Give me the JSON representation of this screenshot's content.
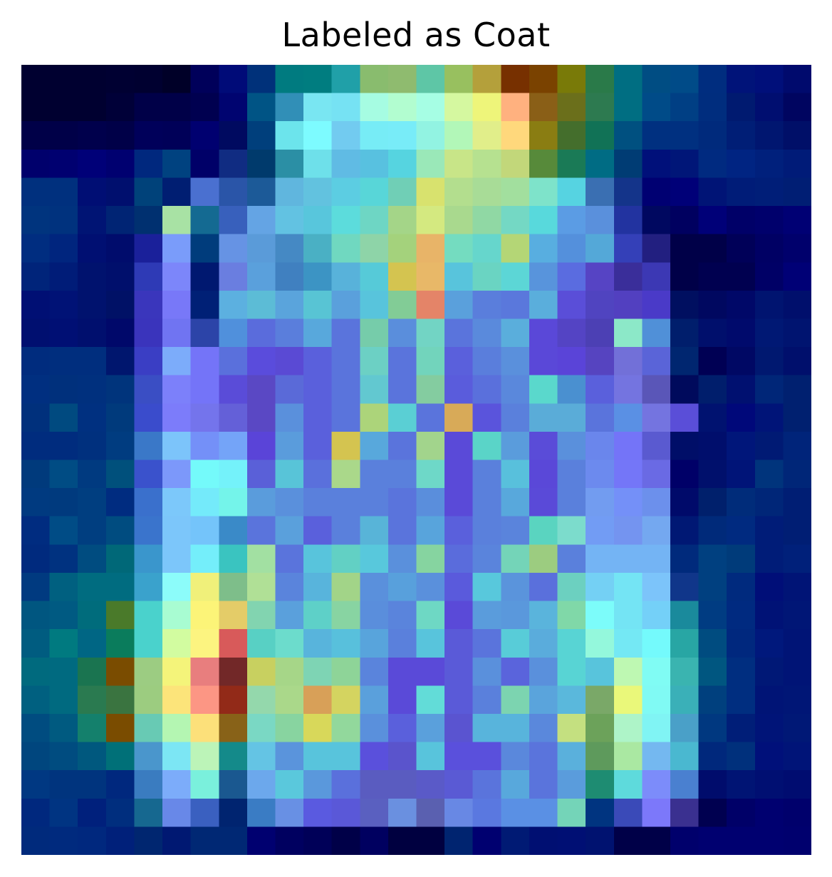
{
  "title": "Labeled as Coat",
  "image_description_tag": "heatmap-overlay",
  "colors": {
    "background": "#ffffff",
    "title_text": "#000000"
  },
  "grid": {
    "rows": 28,
    "cols": 28
  },
  "pixels": [
    [
      "#000030",
      "#000030",
      "#000030",
      "#000032",
      "#000030",
      "#000028",
      "#00005a",
      "#000b78",
      "#00317a",
      "#007b80",
      "#007d80",
      "#20a0a8",
      "#89bc6e",
      "#8fbb6f",
      "#5ec6a6",
      "#98c05f",
      "#b4a03b",
      "#773000",
      "#7a4200",
      "#797a08",
      "#2a7a49",
      "#006e82",
      "#004d83",
      "#004b88",
      "#002d7f",
      "#001379",
      "#000f7a",
      "#000a6d"
    ],
    [
      "#000030",
      "#000030",
      "#000030",
      "#000038",
      "#000048",
      "#000048",
      "#000050",
      "#000470",
      "#005485",
      "#318fb7",
      "#79e6f2",
      "#76e2f3",
      "#a6fce2",
      "#b2fdd0",
      "#a6fee4",
      "#d5f8a0",
      "#eef57a",
      "#ffb17f",
      "#8a5f17",
      "#6b6f1b",
      "#2d7a50",
      "#006e82",
      "#004b88",
      "#003f84",
      "#002d7e",
      "#001a70",
      "#000e70",
      "#000560"
    ],
    [
      "#000048",
      "#000048",
      "#00004c",
      "#000048",
      "#00005a",
      "#000058",
      "#000070",
      "#000a60",
      "#003f7c",
      "#6ce4ec",
      "#7dfbff",
      "#72cbf0",
      "#77ecf6",
      "#78ecf8",
      "#92f3e2",
      "#b2f7b8",
      "#e1ee8a",
      "#ffd87c",
      "#8a7d12",
      "#446e2c",
      "#117256",
      "#005080",
      "#003080",
      "#003080",
      "#002a7c",
      "#001e76",
      "#001670",
      "#000f68"
    ],
    [
      "#00006c",
      "#000070",
      "#000078",
      "#000070",
      "#00287e",
      "#004280",
      "#000068",
      "#102c82",
      "#003a6c",
      "#2b8fa5",
      "#6ee0ea",
      "#60bbe4",
      "#58c1e0",
      "#56d4e0",
      "#9ae8b8",
      "#c8e588",
      "#b6e190",
      "#c2d77a",
      "#578a3a",
      "#1a7a56",
      "#006c84",
      "#003c74",
      "#00107a",
      "#001678",
      "#002a80",
      "#002482",
      "#00207c",
      "#001b78"
    ],
    [
      "#00307e",
      "#00307e",
      "#000e74",
      "#000f6e",
      "#00427a",
      "#001e72",
      "#4a70d0",
      "#2a55a8",
      "#1c5a98",
      "#60b6de",
      "#62c2df",
      "#5ccde2",
      "#58d6d8",
      "#70cfb6",
      "#d8e26e",
      "#b3de8e",
      "#a8dc97",
      "#a2df9e",
      "#7ee3ca",
      "#56d3e1",
      "#3a6fb2",
      "#14348a",
      "#000072",
      "#000078",
      "#001476",
      "#001c78",
      "#001e78",
      "#001e74"
    ],
    [
      "#00347e",
      "#00327e",
      "#001474",
      "#002474",
      "#003070",
      "#a8e2a4",
      "#146a92",
      "#3860bc",
      "#64a4e4",
      "#62c2e2",
      "#58c6dc",
      "#5cdcdc",
      "#6ed6c4",
      "#a4d588",
      "#d4e980",
      "#a9d98e",
      "#90d8a4",
      "#74d8c4",
      "#58d9dc",
      "#5b9ce4",
      "#5a90dc",
      "#2233a0",
      "#000860",
      "#000060",
      "#000078",
      "#000068",
      "#00006c",
      "#000074"
    ],
    [
      "#002d80",
      "#00257e",
      "#000f72",
      "#000c6c",
      "#1a209a",
      "#7a9cfa",
      "#003c7c",
      "#6693e4",
      "#5a9bd9",
      "#4589c4",
      "#4ab0c4",
      "#70d8c0",
      "#8ed4a8",
      "#a4d27c",
      "#e8b468",
      "#74dcc0",
      "#66d6cc",
      "#b4d676",
      "#58aee0",
      "#5490dc",
      "#54a8d8",
      "#3440b8",
      "#221f80",
      "#000048",
      "#000048",
      "#000058",
      "#000064",
      "#00006c"
    ],
    [
      "#00247a",
      "#001c78",
      "#00126e",
      "#000f6c",
      "#2e3ab6",
      "#7c86fa",
      "#001870",
      "#6a7ee0",
      "#5aa0dc",
      "#4080c0",
      "#3c94c4",
      "#58b2da",
      "#56cad8",
      "#d4c450",
      "#e8b868",
      "#58c4dc",
      "#6ad4c2",
      "#5cd6d6",
      "#5894dc",
      "#5a6ce0",
      "#5644c4",
      "#3a2e9a",
      "#3c38b4",
      "#000048",
      "#000050",
      "#000050",
      "#000066",
      "#000076"
    ],
    [
      "#000f74",
      "#001276",
      "#00126e",
      "#001166",
      "#3a36bc",
      "#7878f8",
      "#002076",
      "#5cb0e0",
      "#5cbcd6",
      "#5aa4dc",
      "#58c4d4",
      "#5aa0dc",
      "#58c4dc",
      "#82cc96",
      "#e48468",
      "#5aa0dc",
      "#5a7edc",
      "#5a78dc",
      "#5aaedc",
      "#5a4ed8",
      "#5044c0",
      "#5240c0",
      "#4a3ac8",
      "#000f60",
      "#000860",
      "#000868",
      "#001470",
      "#000f6c"
    ],
    [
      "#000f70",
      "#000f74",
      "#000f6e",
      "#00086a",
      "#3a34bc",
      "#7074f2",
      "#2c44a8",
      "#5090dc",
      "#5a6cdc",
      "#5a7edc",
      "#58a8dc",
      "#5a74dc",
      "#76ccaa",
      "#5a8edc",
      "#72d4c4",
      "#5a74dc",
      "#5a8adc",
      "#5aaedc",
      "#5a48d8",
      "#5444c4",
      "#4c40b4",
      "#8ce8c8",
      "#5090d8",
      "#001e6c",
      "#000f6c",
      "#000a6c",
      "#001874",
      "#001470"
    ],
    [
      "#002c7e",
      "#002e7e",
      "#002e7e",
      "#00166e",
      "#3a3ec4",
      "#7cacfa",
      "#7474f8",
      "#5a70dc",
      "#5a4cdc",
      "#5a4ad4",
      "#5a60dc",
      "#5a74dc",
      "#6cd0c4",
      "#5a74dc",
      "#72d4bc",
      "#5a60dc",
      "#5a7edc",
      "#5a90dc",
      "#5a48d8",
      "#5a44d8",
      "#5644c0",
      "#7270d8",
      "#5a64d8",
      "#002670",
      "#000054",
      "#000864",
      "#001870",
      "#000f6c"
    ],
    [
      "#002f80",
      "#00307c",
      "#00307e",
      "#00347c",
      "#3a4ec4",
      "#7c80fa",
      "#7474f8",
      "#5a4cd8",
      "#5a48c4",
      "#5a6ad8",
      "#5a60dc",
      "#5a74dc",
      "#62c8d0",
      "#5a74dc",
      "#84cca0",
      "#5a5cdc",
      "#5a70dc",
      "#5a88dc",
      "#5ad8cc",
      "#4a90d0",
      "#5a60dc",
      "#7474e0",
      "#5a56b8",
      "#000a5c",
      "#001e6c",
      "#001070",
      "#002678",
      "#002070"
    ],
    [
      "#00307c",
      "#004a80",
      "#003080",
      "#003a7c",
      "#3a4ccc",
      "#7c7cfa",
      "#7474ec",
      "#6460d8",
      "#5a48c4",
      "#5a90dc",
      "#5a60dc",
      "#5a74dc",
      "#acd47a",
      "#5acfd4",
      "#5a74dc",
      "#d8aa58",
      "#5a54dc",
      "#5a80dc",
      "#5aacd8",
      "#5aacd8",
      "#5a74dc",
      "#5a90e4",
      "#7474e0",
      "#5a4ed8",
      "#001270",
      "#00087a",
      "#001478",
      "#002070"
    ],
    [
      "#002c7e",
      "#002c7e",
      "#00307e",
      "#003c80",
      "#3a78c8",
      "#7cc4fa",
      "#7490f8",
      "#74a4f8",
      "#5a44d8",
      "#5a9cdc",
      "#5a60dc",
      "#d4c450",
      "#58a8dc",
      "#5a74dc",
      "#a2d48c",
      "#5a4ad8",
      "#5ad4c8",
      "#5a9cdc",
      "#5a4cd8",
      "#5a90dc",
      "#6a86ec",
      "#7474f8",
      "#5a5ad0",
      "#000e68",
      "#000e6c",
      "#00167a",
      "#001a74",
      "#00247a"
    ],
    [
      "#003a7c",
      "#004c84",
      "#003a80",
      "#00507c",
      "#3a52cc",
      "#7c98fa",
      "#74fafa",
      "#74f2fa",
      "#5a60d8",
      "#58c4d8",
      "#5a70dc",
      "#aad88a",
      "#5a80dc",
      "#5a80dc",
      "#6ed8c8",
      "#5a4ad8",
      "#5a80dc",
      "#58c0dc",
      "#5a48d8",
      "#5a80dc",
      "#6c8aee",
      "#7476f8",
      "#6a6ae4",
      "#000068",
      "#00106c",
      "#001478",
      "#00347c",
      "#002678"
    ],
    [
      "#003a80",
      "#003a7e",
      "#003e80",
      "#002c80",
      "#3a70cc",
      "#7cc8fa",
      "#74eafa",
      "#74f4ea",
      "#5a9cdc",
      "#5a90dc",
      "#5a80dc",
      "#5a80dc",
      "#5a80dc",
      "#5a74dc",
      "#5a8edc",
      "#5a4ad8",
      "#5a80dc",
      "#58a8dc",
      "#5a4ad8",
      "#5a80dc",
      "#729cf0",
      "#7490f8",
      "#6c90ec",
      "#000a6a",
      "#00206c",
      "#002c7a",
      "#002678",
      "#001e74"
    ],
    [
      "#002c80",
      "#004c86",
      "#003e80",
      "#004c80",
      "#3a74cc",
      "#7cc6fa",
      "#74c4fa",
      "#3a8ac8",
      "#5a74dc",
      "#5aa0dc",
      "#5a60dc",
      "#5a80dc",
      "#58b4d8",
      "#5a74dc",
      "#58a4dc",
      "#5a60dc",
      "#5a80dc",
      "#5a84dc",
      "#5ad4c0",
      "#7cdccc",
      "#729cf4",
      "#7494f0",
      "#74a8f0",
      "#001874",
      "#002a7a",
      "#002a80",
      "#001c78",
      "#001e74"
    ],
    [
      "#002a7e",
      "#003280",
      "#004c80",
      "#006878",
      "#3a96cc",
      "#7cc6fa",
      "#74eefa",
      "#3ac4c0",
      "#a2e0a2",
      "#5a74dc",
      "#58c4dc",
      "#62d0c4",
      "#58c8dc",
      "#5a90dc",
      "#86d4a0",
      "#5a6cdc",
      "#5a84dc",
      "#74d4b8",
      "#9ccc80",
      "#5a80dc",
      "#74b4f4",
      "#74b4f4",
      "#74b4f4",
      "#002a7c",
      "#004080",
      "#003b7a",
      "#001c78",
      "#00207a"
    ],
    [
      "#003a80",
      "#006080",
      "#006c80",
      "#006c80",
      "#3aa2cc",
      "#8cfcfa",
      "#f0f07a",
      "#7ebe8a",
      "#b0e096",
      "#5a84dc",
      "#58b4dc",
      "#a2d488",
      "#5a90dc",
      "#58a0dc",
      "#5a90dc",
      "#5a5adc",
      "#58c8dc",
      "#5a94dc",
      "#5a70dc",
      "#6cd0c0",
      "#74d0f4",
      "#74e4f4",
      "#7cc4fa",
      "#10368a",
      "#004080",
      "#002a7e",
      "#000e78",
      "#001476"
    ],
    [
      "#005680",
      "#005a82",
      "#006c7c",
      "#4a7a2a",
      "#4ad2cc",
      "#a8fcd2",
      "#fcf478",
      "#e4cc68",
      "#82d4b0",
      "#5aa0dc",
      "#5ed0c8",
      "#88d4a2",
      "#5a8edc",
      "#5a84dc",
      "#6ed8c4",
      "#5a4ad8",
      "#5a9cdc",
      "#5a98dc",
      "#5ab4dc",
      "#80d8a8",
      "#7cfcfa",
      "#74e4f4",
      "#74d0f8",
      "#1a8a9c",
      "#003c82",
      "#002a80",
      "#001276",
      "#001676"
    ],
    [
      "#005c80",
      "#007a80",
      "#006684",
      "#0a7c5c",
      "#4ad2cc",
      "#d2fca0",
      "#fcf480",
      "#d85a5a",
      "#58d0c4",
      "#6cdccc",
      "#58b4dc",
      "#58c0dc",
      "#58a4dc",
      "#5a80dc",
      "#58c4dc",
      "#5a5ad8",
      "#5a74dc",
      "#58ccd8",
      "#5aacdc",
      "#58d4d4",
      "#94f8dc",
      "#74e8f4",
      "#74fafc",
      "#28a6a4",
      "#004c80",
      "#00287e",
      "#00187c",
      "#001476"
    ],
    [
      "#006a7e",
      "#006a80",
      "#1a7450",
      "#7a4c00",
      "#9ccc82",
      "#f4f47a",
      "#e87e7e",
      "#722828",
      "#c8d060",
      "#a6d688",
      "#7ed4b4",
      "#8ed498",
      "#5a84dc",
      "#5a4ad8",
      "#5a4ad8",
      "#5a5ad8",
      "#5a90dc",
      "#5a64dc",
      "#5a90dc",
      "#58d4d4",
      "#58c4dc",
      "#bef8b2",
      "#80fcf4",
      "#3ab4b0",
      "#005680",
      "#002e80",
      "#001876",
      "#001476"
    ],
    [
      "#006080",
      "#006a80",
      "#2a7a50",
      "#3a7440",
      "#9ccc80",
      "#fce47a",
      "#fc9684",
      "#922a18",
      "#94d8ac",
      "#aad88a",
      "#d8a058",
      "#d4d460",
      "#5aa0dc",
      "#5a4ad8",
      "#62dcd8",
      "#5a5ad8",
      "#5a80dc",
      "#7cd4b0",
      "#5aa4dc",
      "#5ab8dc",
      "#7aa868",
      "#eaf87a",
      "#80faf4",
      "#3ab0b8",
      "#00407e",
      "#002e80",
      "#001476",
      "#001676"
    ],
    [
      "#004c80",
      "#005a80",
      "#14806c",
      "#7a4c00",
      "#68cab4",
      "#b4f6b2",
      "#fce07a",
      "#886218",
      "#7ad8c4",
      "#88d4a0",
      "#d8d85a",
      "#92d89c",
      "#5a90dc",
      "#5a60dc",
      "#5aa0dc",
      "#5a54d0",
      "#58b4dc",
      "#58b4dc",
      "#5a88dc",
      "#c4e080",
      "#6ca25a",
      "#aef4c8",
      "#80f4f4",
      "#4aa0c8",
      "#003880",
      "#001e78",
      "#001478",
      "#001876"
    ],
    [
      "#00467e",
      "#004c80",
      "#00587e",
      "#007078",
      "#4a96cc",
      "#7ce6f4",
      "#bcf4b8",
      "#148a8a",
      "#64c4e4",
      "#5a94dc",
      "#58c4dc",
      "#58c4dc",
      "#5a50dc",
      "#5a54cc",
      "#58c4dc",
      "#5a50dc",
      "#5a50dc",
      "#5a88dc",
      "#5a74dc",
      "#5ab0dc",
      "#5e9a5c",
      "#aae8a2",
      "#74b8f0",
      "#4ab8d0",
      "#00287c",
      "#00307c",
      "#00107a",
      "#001478"
    ],
    [
      "#003882",
      "#00347e",
      "#00347e",
      "#00287e",
      "#3a7cc0",
      "#7cacfa",
      "#7af0dc",
      "#1a5890",
      "#6ca8ec",
      "#5ac8dc",
      "#5a98dc",
      "#5a70dc",
      "#5a5cc0",
      "#5a5cc0",
      "#5a5ac8",
      "#5a5ad4",
      "#5a74dc",
      "#58a8dc",
      "#5a74dc",
      "#5a9cdc",
      "#1e8c72",
      "#5edadc",
      "#7c8cfa",
      "#4a80d0",
      "#000c6c",
      "#001474",
      "#000f72",
      "#000c70"
    ],
    [
      "#00287e",
      "#003482",
      "#00207c",
      "#002e7e",
      "#166890",
      "#6888e8",
      "#3a60c0",
      "#002470",
      "#3a7cc4",
      "#6890e4",
      "#5a5ae0",
      "#5a58d8",
      "#5a60c0",
      "#6a90e0",
      "#5a60b0",
      "#6888e4",
      "#5a78e0",
      "#5a90e4",
      "#5a90e4",
      "#74d4b8",
      "#003480",
      "#3a4ab8",
      "#7c78fa",
      "#3a3090",
      "#000050",
      "#000068",
      "#000070",
      "#00006c"
    ],
    [
      "#002a7c",
      "#002a7e",
      "#00287e",
      "#00207a",
      "#002670",
      "#001872",
      "#002874",
      "#002874",
      "#000070",
      "#000060",
      "#000058",
      "#000048",
      "#000060",
      "#000040",
      "#000040",
      "#002470",
      "#000070",
      "#001a74",
      "#000f72",
      "#000f74",
      "#001270",
      "#000048",
      "#000048",
      "#00006c",
      "#000070",
      "#000070",
      "#000070",
      "#00006e"
    ]
  ]
}
